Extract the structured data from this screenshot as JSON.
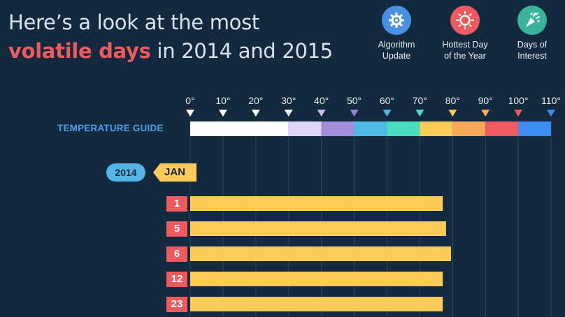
{
  "title": {
    "line1": "Here’s a look at the most",
    "highlight": "volatile days",
    "line2_rest": " in 2014 and 2015"
  },
  "legend": [
    {
      "label_line1": "Algorithm",
      "label_line2": "Update",
      "color": "#4a90e2",
      "icon": "gear-bot-icon"
    },
    {
      "label_line1": "Hottest Day",
      "label_line2": "of the Year",
      "color": "#ef5a5e",
      "icon": "sun-icon"
    },
    {
      "label_line1": "Days of",
      "label_line2": "Interest",
      "color": "#3bb39a",
      "icon": "party-popper-icon"
    }
  ],
  "guide": {
    "label": "TEMPERATURE GUIDE",
    "ticks": [
      "0°",
      "10°",
      "20°",
      "30°",
      "40°",
      "50°",
      "60°",
      "70°",
      "80°",
      "90°",
      "100°",
      "110°"
    ],
    "tick_colors": [
      "#ffffff",
      "#ffffff",
      "#ffffff",
      "#ffffff",
      "#c5bdf0",
      "#9b7fd8",
      "#4fb9e6",
      "#48dcc0",
      "#fdcc58",
      "#f8a95a",
      "#ef5a5e",
      "#3d8ef0"
    ],
    "segments": [
      {
        "from": 0,
        "to": 30,
        "color": "#ffffff"
      },
      {
        "from": 30,
        "to": 40,
        "color": "#dcd5f7"
      },
      {
        "from": 40,
        "to": 50,
        "color": "#a38cdb"
      },
      {
        "from": 50,
        "to": 60,
        "color": "#4fb9e6"
      },
      {
        "from": 60,
        "to": 70,
        "color": "#48dcc0"
      },
      {
        "from": 70,
        "to": 80,
        "color": "#fdcc58"
      },
      {
        "from": 80,
        "to": 90,
        "color": "#f8a95a"
      },
      {
        "from": 90,
        "to": 100,
        "color": "#ef5a5e"
      },
      {
        "from": 100,
        "to": 110,
        "color": "#3d8ef0"
      }
    ]
  },
  "chart_data": {
    "type": "bar",
    "orientation": "horizontal",
    "xlim": [
      0,
      110
    ],
    "grid": true,
    "year": "2014",
    "month": "JAN",
    "categories": [
      "1",
      "5",
      "6",
      "12",
      "23"
    ],
    "values": [
      77,
      78,
      79.5,
      77,
      77
    ],
    "bar_color": "#fdcc58"
  }
}
